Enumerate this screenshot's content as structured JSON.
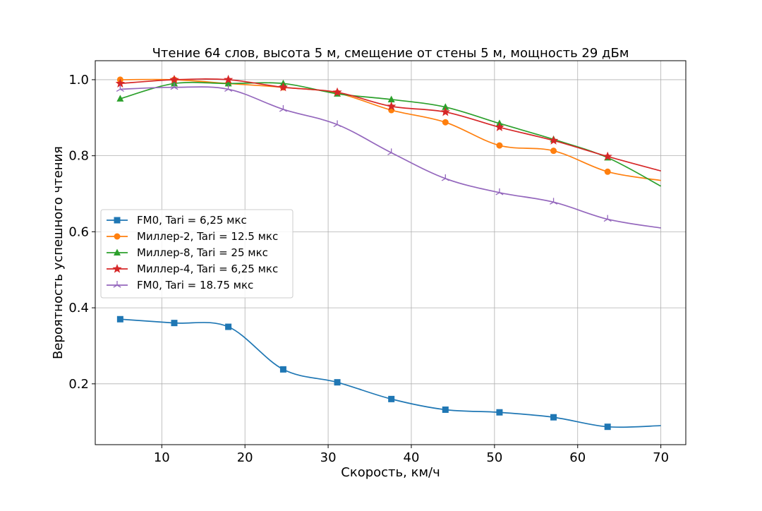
{
  "chart_data": {
    "type": "line",
    "title": "Чтение 64 слов, высота 5 м, смещение от стены 5 м, мощность 29 дБм",
    "xlabel": "Скорость, км/ч",
    "ylabel": "Вероятность успешного чтения",
    "xlim": [
      2,
      73
    ],
    "ylim": [
      0.04,
      1.05
    ],
    "xticks": [
      10,
      20,
      30,
      40,
      50,
      60,
      70
    ],
    "xtick_labels": [
      "10",
      "20",
      "30",
      "40",
      "50",
      "60",
      "70"
    ],
    "yticks": [
      0.2,
      0.4,
      0.6,
      0.8,
      1.0
    ],
    "ytick_labels": [
      "0.2",
      "0.4",
      "0.6",
      "0.8",
      "1.0"
    ],
    "grid": true,
    "legend_position": "center-left",
    "series": [
      {
        "name": "FM0, Tari = 6,25 мкс",
        "color": "#1f77b4",
        "marker": "square",
        "x": [
          5,
          11.5,
          18,
          24.6,
          31.1,
          37.6,
          44.1,
          50.6,
          57.1,
          63.6,
          70
        ],
        "y": [
          0.37,
          0.36,
          0.35,
          0.238,
          0.204,
          0.16,
          0.132,
          0.125,
          0.112,
          0.087,
          0.09
        ],
        "marker_count": 10
      },
      {
        "name": "Миллер-2, Tari = 12.5 мкс",
        "color": "#ff7f0e",
        "marker": "circle",
        "x": [
          5,
          11.5,
          18,
          24.6,
          31.1,
          37.6,
          44.1,
          50.6,
          57.1,
          63.6,
          70
        ],
        "y": [
          1.0,
          1.0,
          0.99,
          0.98,
          0.965,
          0.92,
          0.888,
          0.827,
          0.813,
          0.758,
          0.735
        ],
        "marker_count": 10
      },
      {
        "name": "Миллер-8, Tari = 25 мкс",
        "color": "#2ca02c",
        "marker": "triangle",
        "x": [
          5,
          11.5,
          18,
          24.6,
          31.1,
          37.6,
          44.1,
          50.6,
          57.1,
          63.6,
          70
        ],
        "y": [
          0.95,
          0.99,
          0.99,
          0.99,
          0.963,
          0.948,
          0.928,
          0.885,
          0.843,
          0.795,
          0.72
        ],
        "marker_count": 10
      },
      {
        "name": "Миллер-4, Tari = 6,25 мкс",
        "color": "#d62728",
        "marker": "star",
        "x": [
          5,
          11.5,
          18,
          24.6,
          31.1,
          37.6,
          44.1,
          50.6,
          57.1,
          63.6,
          70
        ],
        "y": [
          0.99,
          1.0,
          1.0,
          0.98,
          0.967,
          0.93,
          0.915,
          0.875,
          0.84,
          0.798,
          0.76
        ],
        "marker_count": 10
      },
      {
        "name": "FM0, Tari = 18.75 мкс",
        "color": "#9467bd",
        "marker": "tri_down",
        "x": [
          5,
          11.5,
          18,
          24.6,
          31.1,
          37.6,
          44.1,
          50.6,
          57.1,
          63.6,
          70
        ],
        "y": [
          0.975,
          0.98,
          0.975,
          0.922,
          0.882,
          0.808,
          0.74,
          0.703,
          0.678,
          0.633,
          0.61
        ],
        "marker_count": 10
      }
    ]
  }
}
